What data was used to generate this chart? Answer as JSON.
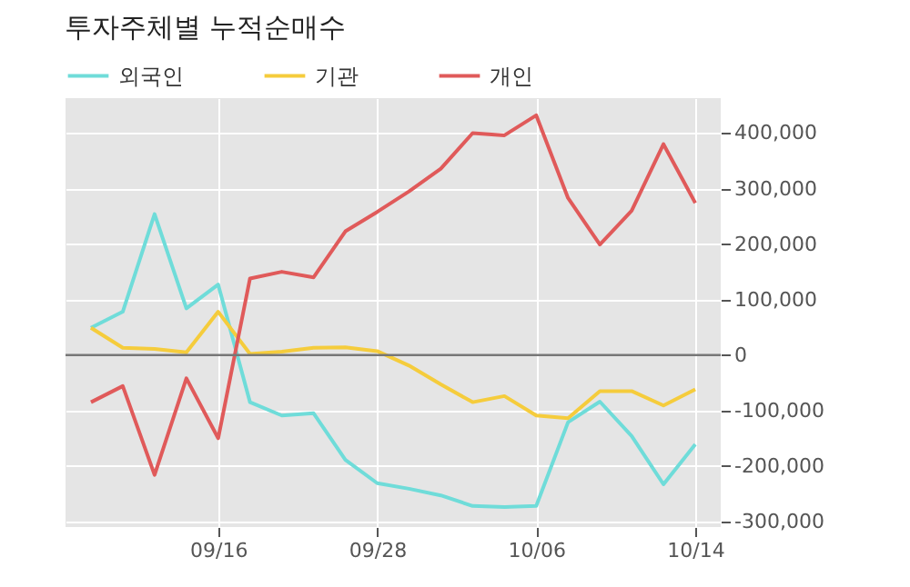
{
  "chart_data": {
    "type": "line",
    "title": "투자주체별 누적순매수",
    "categories": [
      null,
      null,
      null,
      null,
      "09/16",
      null,
      null,
      null,
      null,
      "09/28",
      null,
      null,
      null,
      null,
      "10/06",
      null,
      null,
      null,
      null,
      "10/14"
    ],
    "series": [
      {
        "name": "외국인",
        "color": "#6fdcd9",
        "values": [
          49000,
          78000,
          254000,
          84000,
          127000,
          -85000,
          -109000,
          -105000,
          -189000,
          -231000,
          -241000,
          -253000,
          -272000,
          -274000,
          -272000,
          -121000,
          -84000,
          -146000,
          -233000,
          -161000
        ]
      },
      {
        "name": "기관",
        "color": "#f5cc3c",
        "values": [
          49000,
          13000,
          11000,
          5000,
          78000,
          2000,
          6000,
          13000,
          14000,
          7000,
          -19000,
          -53000,
          -85000,
          -74000,
          -109000,
          -114000,
          -65000,
          -65000,
          -91000,
          -62000
        ]
      },
      {
        "name": "개인",
        "color": "#e05a5a",
        "values": [
          -85000,
          -56000,
          -216000,
          -42000,
          -150000,
          138000,
          150000,
          140000,
          223000,
          258000,
          295000,
          336000,
          400000,
          396000,
          432000,
          283000,
          199000,
          260000,
          380000,
          274000
        ]
      }
    ],
    "ylim": [
      -310000,
      463000
    ],
    "yticks": [
      {
        "value": -300000,
        "label": "-300,000"
      },
      {
        "value": -200000,
        "label": "-200,000"
      },
      {
        "value": -100000,
        "label": "-100,000"
      },
      0,
      {
        "value": 100000,
        "label": "100,000"
      },
      {
        "value": 200000,
        "label": "200,000"
      },
      {
        "value": 300000,
        "label": "300,000"
      },
      {
        "value": 400000,
        "label": "400,000"
      }
    ],
    "ref_lines": [
      {
        "axis": "y",
        "value": 0,
        "color": "#777777"
      }
    ],
    "grid": true,
    "legend": "top left",
    "marker": "none",
    "line_style": "solid"
  }
}
